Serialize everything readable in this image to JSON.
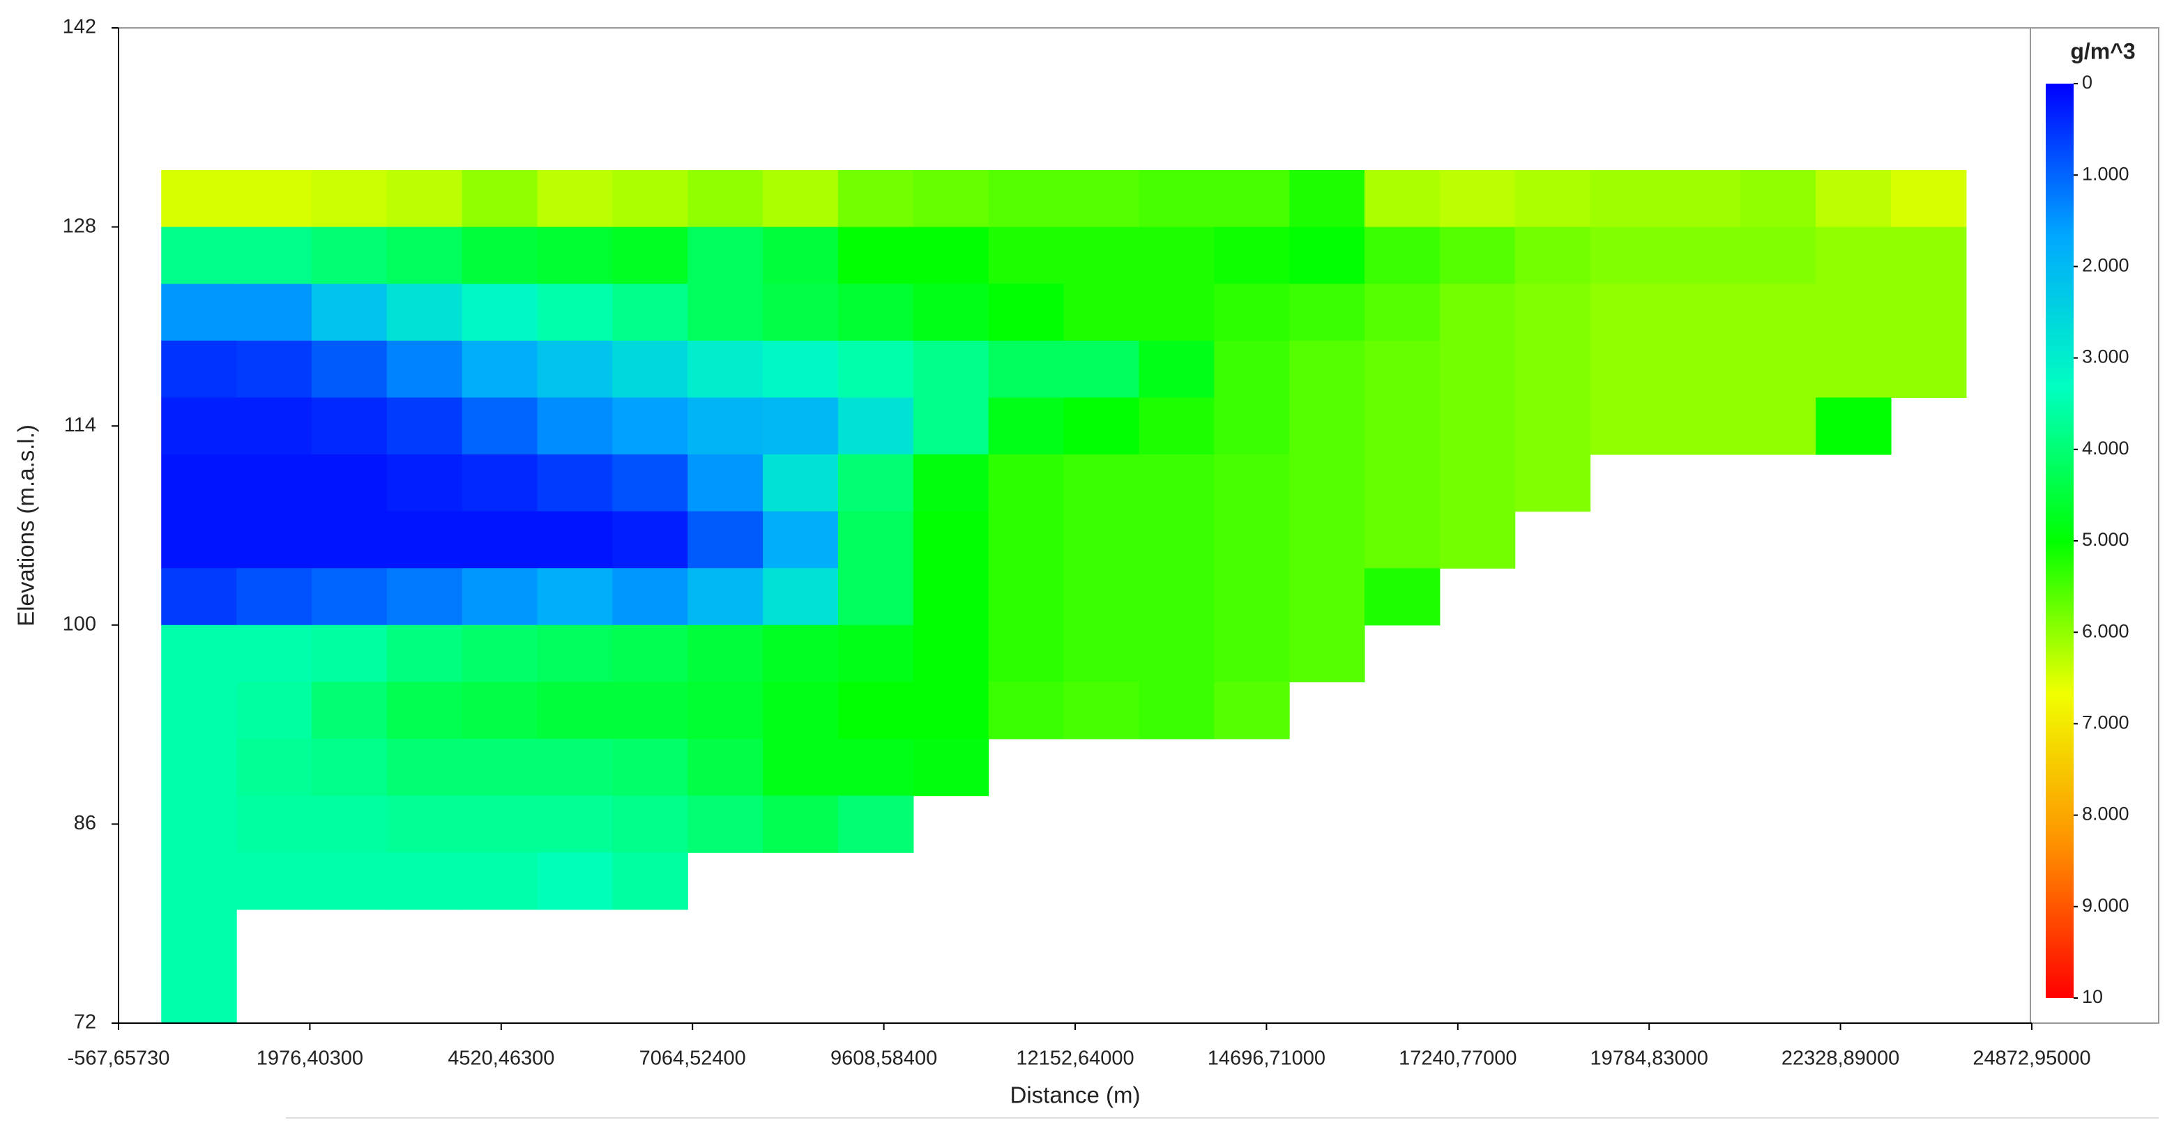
{
  "chart_data": {
    "type": "heatmap",
    "xlabel": "Distance (m)",
    "ylabel": "Elevations (m.a.s.l.)",
    "colorbar_title": "g/m^3",
    "xlim": [
      -567.6573,
      24872.95
    ],
    "xticks": [
      {
        "value": -567.6573,
        "label": "-567,65730"
      },
      {
        "value": 1976.403,
        "label": "1976,40300"
      },
      {
        "value": 4520.463,
        "label": "4520,46300"
      },
      {
        "value": 7064.524,
        "label": "7064,52400"
      },
      {
        "value": 9608.584,
        "label": "9608,58400"
      },
      {
        "value": 12152.64,
        "label": "12152,64000"
      },
      {
        "value": 14696.71,
        "label": "14696,71000"
      },
      {
        "value": 17240.77,
        "label": "17240,77000"
      },
      {
        "value": 19784.83,
        "label": "19784,83000"
      },
      {
        "value": 22328.89,
        "label": "22328,89000"
      },
      {
        "value": 24872.95,
        "label": "24872,95000"
      }
    ],
    "ylim": [
      72,
      142
    ],
    "yticks": [
      72,
      86,
      100,
      114,
      128,
      142
    ],
    "clim": [
      0,
      10
    ],
    "cticks": [
      0,
      {
        "value": 1,
        "label": "1.000"
      },
      {
        "value": 2,
        "label": "2.000"
      },
      {
        "value": 3,
        "label": "3.000"
      },
      {
        "value": 4,
        "label": "4.000"
      },
      {
        "value": 5,
        "label": "5.000"
      },
      {
        "value": 6,
        "label": "6.000"
      },
      {
        "value": 7,
        "label": "7.000"
      },
      {
        "value": 8,
        "label": "8.000"
      },
      {
        "value": 9,
        "label": "9.000"
      },
      10
    ],
    "colorscale": [
      "#0000ff",
      "#00a8ff",
      "#00ffc0",
      "#00ff00",
      "#f0ff00",
      "#ff9000",
      "#ff0000"
    ],
    "x_bins": [
      0,
      1000,
      2000,
      3000,
      4000,
      5000,
      6000,
      7000,
      8000,
      9000,
      10000,
      11000,
      12000,
      13000,
      14000,
      15000,
      16000,
      17000,
      18000,
      19000,
      20000,
      21000,
      22000,
      23000,
      24000
    ],
    "y_bins": [
      132,
      128,
      124,
      120,
      116,
      112,
      108,
      104,
      100,
      96,
      92,
      88,
      84,
      80,
      76,
      72
    ],
    "z": [
      [
        6.5,
        3.8,
        1.5,
        0.5,
        0.3,
        0.2,
        0.2,
        0.6,
        3.5,
        3.5,
        3.5,
        3.5,
        3.5,
        3.5,
        3.5
      ],
      [
        6.5,
        3.8,
        1.5,
        0.6,
        0.3,
        0.2,
        0.2,
        0.8,
        3.5,
        3.6,
        3.7,
        3.6,
        3.5,
        null,
        null
      ],
      [
        6.4,
        4.0,
        2.2,
        0.9,
        0.4,
        0.2,
        0.2,
        1.0,
        3.6,
        4.0,
        3.8,
        3.6,
        3.5,
        null,
        null
      ],
      [
        6.3,
        4.2,
        2.8,
        1.3,
        0.6,
        0.3,
        0.2,
        1.2,
        3.9,
        4.3,
        4.0,
        3.7,
        3.5,
        null,
        null
      ],
      [
        6.0,
        4.5,
        3.2,
        1.8,
        1.0,
        0.4,
        0.2,
        1.5,
        4.1,
        4.4,
        4.0,
        3.7,
        3.5,
        null,
        null
      ],
      [
        6.3,
        4.6,
        3.5,
        2.2,
        1.4,
        0.6,
        0.2,
        1.8,
        4.2,
        4.5,
        4.0,
        3.7,
        3.4,
        null,
        null
      ],
      [
        6.2,
        4.7,
        3.8,
        2.6,
        1.6,
        0.8,
        0.3,
        1.5,
        4.3,
        4.5,
        4.1,
        3.8,
        3.6,
        null,
        null
      ],
      [
        6.0,
        4.2,
        4.2,
        3.0,
        1.9,
        1.5,
        0.9,
        2.0,
        4.5,
        4.6,
        4.4,
        4.0,
        null,
        null,
        null
      ],
      [
        6.2,
        4.5,
        4.4,
        3.2,
        2.0,
        2.8,
        1.8,
        2.8,
        4.7,
        4.8,
        4.8,
        4.3,
        null,
        null,
        null
      ],
      [
        5.8,
        5.0,
        4.6,
        3.5,
        2.8,
        4.0,
        4.2,
        4.2,
        4.8,
        5.0,
        4.8,
        4.0,
        null,
        null,
        null
      ],
      [
        5.7,
        5.0,
        4.8,
        3.8,
        3.8,
        4.9,
        5.0,
        5.0,
        5.0,
        5.0,
        4.9,
        null,
        null,
        null,
        null
      ],
      [
        5.6,
        5.2,
        5.0,
        4.2,
        4.8,
        5.3,
        5.3,
        5.3,
        5.3,
        5.4,
        null,
        null,
        null,
        null,
        null
      ],
      [
        5.6,
        5.2,
        5.2,
        4.2,
        5.0,
        5.4,
        5.4,
        5.4,
        5.4,
        5.5,
        null,
        null,
        null,
        null,
        null
      ],
      [
        5.5,
        5.2,
        5.2,
        4.8,
        5.2,
        5.4,
        5.4,
        5.4,
        5.4,
        5.4,
        null,
        null,
        null,
        null,
        null
      ],
      [
        5.5,
        5.1,
        5.3,
        5.4,
        5.4,
        5.5,
        5.5,
        5.5,
        5.5,
        5.6,
        null,
        null,
        null,
        null,
        null
      ],
      [
        5.2,
        5.0,
        5.4,
        5.6,
        5.6,
        5.6,
        5.6,
        5.6,
        5.6,
        null,
        null,
        null,
        null,
        null,
        null
      ],
      [
        6.2,
        5.4,
        5.6,
        5.7,
        5.7,
        5.7,
        5.7,
        5.2,
        null,
        null,
        null,
        null,
        null,
        null,
        null
      ],
      [
        6.3,
        5.6,
        5.8,
        5.8,
        5.8,
        5.8,
        5.8,
        null,
        null,
        null,
        null,
        null,
        null,
        null,
        null
      ],
      [
        6.2,
        5.8,
        5.9,
        5.9,
        5.9,
        5.9,
        null,
        null,
        null,
        null,
        null,
        null,
        null,
        null,
        null
      ],
      [
        6.1,
        5.9,
        6.0,
        6.0,
        6.0,
        null,
        null,
        null,
        null,
        null,
        null,
        null,
        null,
        null,
        null
      ],
      [
        6.1,
        5.9,
        6.0,
        6.0,
        6.0,
        null,
        null,
        null,
        null,
        null,
        null,
        null,
        null,
        null,
        null
      ],
      [
        6.0,
        5.9,
        6.0,
        6.0,
        6.0,
        null,
        null,
        null,
        null,
        null,
        null,
        null,
        null,
        null,
        null
      ],
      [
        6.3,
        6.0,
        6.0,
        6.0,
        5.0,
        null,
        null,
        null,
        null,
        null,
        null,
        null,
        null,
        null,
        null
      ],
      [
        6.5,
        6.0,
        6.0,
        6.0,
        null,
        null,
        null,
        null,
        null,
        null,
        null,
        null,
        null,
        null,
        null
      ]
    ]
  }
}
